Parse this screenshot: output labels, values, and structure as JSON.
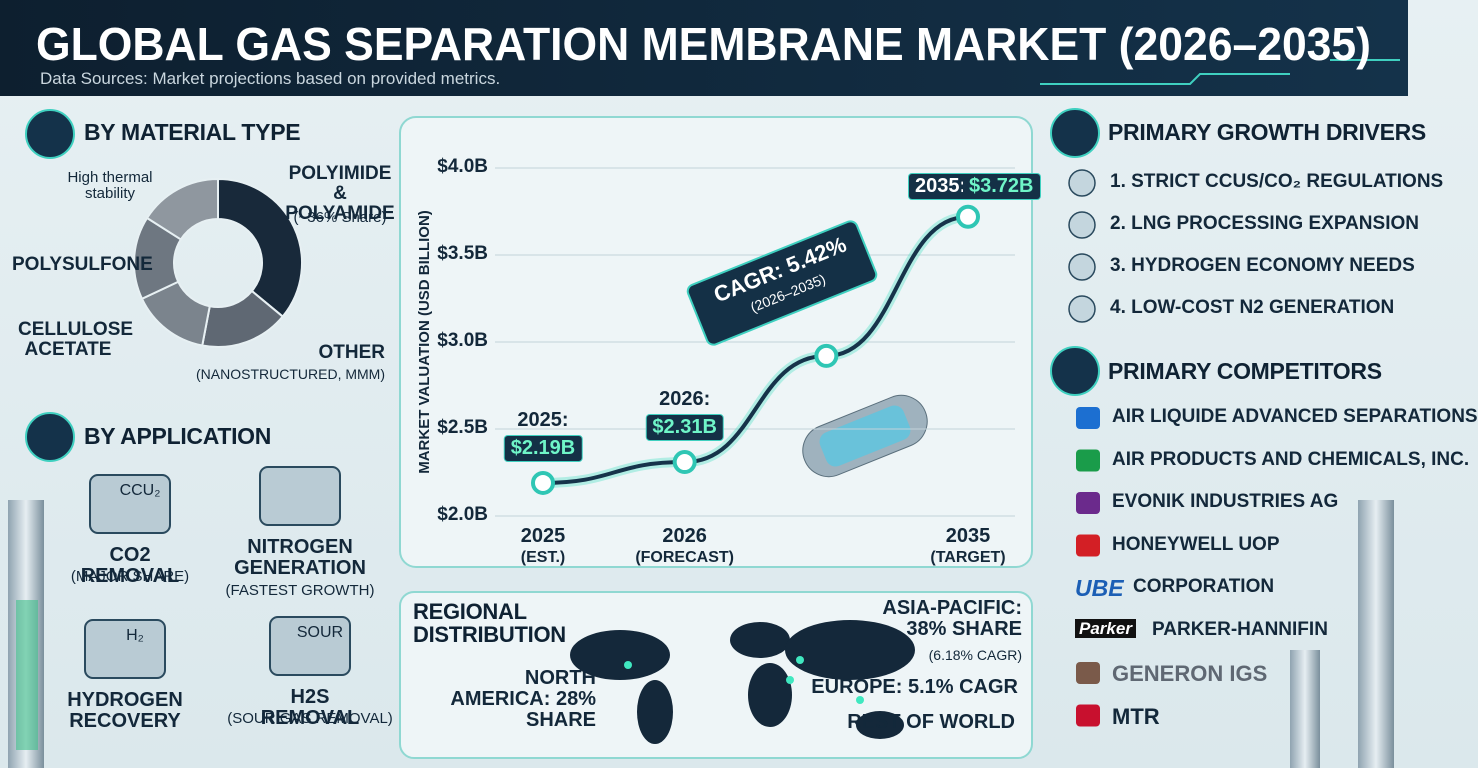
{
  "header": {
    "title": "GLOBAL GAS SEPARATION MEMBRANE MARKET (2026–2035)",
    "subtitle": "Data Sources: Market projections based on provided metrics."
  },
  "chart_data": [
    {
      "type": "pie",
      "donut": true,
      "title": "BY MATERIAL TYPE",
      "categories": [
        "POLYIMIDE & POLYAMIDE",
        "OTHER",
        "CELLULOSE ACETATE",
        "POLYSULFONE",
        "High thermal stability"
      ],
      "values": [
        36,
        17,
        15,
        16,
        16
      ],
      "value_labels": [
        "(~36% Share)",
        null,
        null,
        null,
        null
      ],
      "sublabels": [
        null,
        "(NANOSTRUCTURED, MMM)",
        null,
        null,
        null
      ],
      "colors": [
        "#18293a",
        "#5f6873",
        "#7b848d",
        "#6e7781",
        "#8f979f"
      ]
    },
    {
      "type": "line",
      "y_label": "MARKET VALUATION (USD BILLION)",
      "categories": [
        "2025",
        "2026",
        null,
        "2035"
      ],
      "sublabels": [
        "(EST.)",
        "(FORECAST)",
        null,
        "(TARGET)"
      ],
      "values": [
        2.19,
        2.31,
        2.92,
        3.72
      ],
      "point_labels": [
        "2025:",
        "2026:",
        null,
        "2035:"
      ],
      "value_labels": [
        "$2.19B",
        "$2.31B",
        null,
        "$3.72B"
      ],
      "color": "#16334a",
      "ylim": [
        2.0,
        4.0
      ],
      "yticks": [
        {
          "value": 2.0,
          "label": "$2.0B"
        },
        {
          "value": 2.5,
          "label": "$2.5B"
        },
        {
          "value": 3.0,
          "label": "$3.0B"
        },
        {
          "value": 3.5,
          "label": "$3.5B"
        },
        {
          "value": 4.0,
          "label": "$4.0B"
        }
      ],
      "grid": true,
      "annotation": {
        "text": "CAGR: 5.42%",
        "subtext": "(2026–2035)"
      }
    }
  ],
  "applications": {
    "title": "BY APPLICATION",
    "items": [
      {
        "name": "CO2 REMOVAL",
        "note": "(MAJOR SHARE)",
        "icon_text": "CCU₂"
      },
      {
        "name": "NITROGEN GENERATION",
        "note": "(FASTEST GROWTH)"
      },
      {
        "name": "HYDROGEN RECOVERY",
        "icon_text": "H₂"
      },
      {
        "name": "H2S REMOVAL",
        "note": "(SOUR GAS REMOVAL)",
        "icon_text": "SOUR"
      }
    ]
  },
  "regional": {
    "title": "REGIONAL DISTRIBUTION",
    "regions": [
      {
        "name": "ASIA-PACIFIC: 38% SHARE",
        "note": "(6.18% CAGR)"
      },
      {
        "name": "NORTH AMERICA: 28% SHARE"
      },
      {
        "name": "EUROPE: 5.1% CAGR"
      },
      {
        "name": "REST OF WORLD"
      }
    ]
  },
  "drivers": {
    "title": "PRIMARY GROWTH DRIVERS",
    "items": [
      "1. STRICT CCUS/CO₂ REGULATIONS",
      "2. LNG PROCESSING EXPANSION",
      "3. HYDROGEN ECONOMY NEEDS",
      "4. LOW-COST N2 GENERATION"
    ]
  },
  "competitors": {
    "title": "PRIMARY COMPETITORS",
    "items": [
      {
        "name": "AIR LIQUIDE ADVANCED SEPARATIONS"
      },
      {
        "name": "AIR PRODUCTS AND CHEMICALS, INC."
      },
      {
        "name": "EVONIK INDUSTRIES AG"
      },
      {
        "name": "HONEYWELL UOP"
      },
      {
        "logo": "UBE",
        "name": "CORPORATION"
      },
      {
        "logo": "Parker",
        "name": "PARKER-HANNIFIN"
      },
      {
        "name": "GENERON IGS"
      },
      {
        "name": "MTR"
      }
    ]
  }
}
